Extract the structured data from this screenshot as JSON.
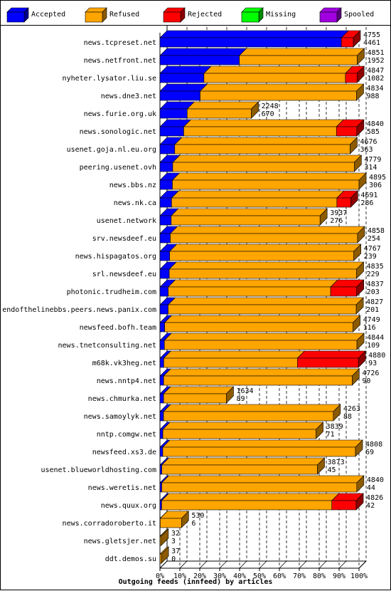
{
  "chart_data": {
    "type": "bar",
    "orientation": "horizontal",
    "stacked": true,
    "xlabel": "Outgoing feeds (innfeed) by articles",
    "xticks": [
      "0%",
      "10%",
      "20%",
      "30%",
      "40%",
      "50%",
      "60%",
      "70%",
      "80%",
      "90%",
      "100%"
    ],
    "xlim": [
      0,
      100
    ],
    "grid": true,
    "legend": {
      "position": "top",
      "items": [
        {
          "name": "Accepted",
          "color": "#0000ff"
        },
        {
          "name": "Refused",
          "color": "#ffa500"
        },
        {
          "name": "Rejected",
          "color": "#ff0000"
        },
        {
          "name": "Missing",
          "color": "#00ff00"
        },
        {
          "name": "Spooled",
          "color": "#a000e0"
        }
      ]
    },
    "rows": [
      {
        "name": "news.tcpreset.net",
        "total": 4755,
        "accepted": 4461,
        "refused": 0,
        "rejected": 294,
        "missing": 0,
        "spooled": 0
      },
      {
        "name": "news.netfront.net",
        "total": 4851,
        "accepted": 1952,
        "refused": 2899,
        "rejected": 0,
        "missing": 0,
        "spooled": 0
      },
      {
        "name": "nyheter.lysator.liu.se",
        "total": 4847,
        "accepted": 1082,
        "refused": 3480,
        "rejected": 285,
        "missing": 0,
        "spooled": 0
      },
      {
        "name": "news.dne3.net",
        "total": 4834,
        "accepted": 988,
        "refused": 3846,
        "rejected": 0,
        "missing": 0,
        "spooled": 0
      },
      {
        "name": "news.furie.org.uk",
        "total": 2248,
        "accepted": 670,
        "refused": 1578,
        "rejected": 0,
        "missing": 0,
        "spooled": 0
      },
      {
        "name": "news.sonologic.net",
        "total": 4840,
        "accepted": 585,
        "refused": 3755,
        "rejected": 500,
        "missing": 0,
        "spooled": 0
      },
      {
        "name": "usenet.goja.nl.eu.org",
        "total": 4676,
        "accepted": 363,
        "refused": 4313,
        "rejected": 0,
        "missing": 0,
        "spooled": 0
      },
      {
        "name": "peering.usenet.ovh",
        "total": 4779,
        "accepted": 314,
        "refused": 4465,
        "rejected": 0,
        "missing": 0,
        "spooled": 0
      },
      {
        "name": "news.bbs.nz",
        "total": 4895,
        "accepted": 306,
        "refused": 4589,
        "rejected": 0,
        "missing": 0,
        "spooled": 0
      },
      {
        "name": "news.nk.ca",
        "total": 4691,
        "accepted": 286,
        "refused": 4065,
        "rejected": 340,
        "missing": 0,
        "spooled": 0
      },
      {
        "name": "usenet.network",
        "total": 3937,
        "accepted": 276,
        "refused": 3661,
        "rejected": 0,
        "missing": 0,
        "spooled": 0
      },
      {
        "name": "srv.newsdeef.eu",
        "total": 4858,
        "accepted": 254,
        "refused": 4604,
        "rejected": 0,
        "missing": 0,
        "spooled": 0
      },
      {
        "name": "news.hispagatos.org",
        "total": 4767,
        "accepted": 239,
        "refused": 4528,
        "rejected": 0,
        "missing": 0,
        "spooled": 0
      },
      {
        "name": "srl.newsdeef.eu",
        "total": 4835,
        "accepted": 229,
        "refused": 4606,
        "rejected": 0,
        "missing": 0,
        "spooled": 0
      },
      {
        "name": "photonic.trudheim.com",
        "total": 4837,
        "accepted": 203,
        "refused": 3994,
        "rejected": 640,
        "missing": 0,
        "spooled": 0
      },
      {
        "name": "endofthelinebbs.peers.news.panix.com",
        "total": 4827,
        "accepted": 201,
        "refused": 4626,
        "rejected": 0,
        "missing": 0,
        "spooled": 0
      },
      {
        "name": "newsfeed.bofh.team",
        "total": 4749,
        "accepted": 116,
        "refused": 4633,
        "rejected": 0,
        "missing": 0,
        "spooled": 0
      },
      {
        "name": "news.tnetconsulting.net",
        "total": 4844,
        "accepted": 109,
        "refused": 4735,
        "rejected": 0,
        "missing": 0,
        "spooled": 0
      },
      {
        "name": "m68k.vk3heg.net",
        "total": 4880,
        "accepted": 93,
        "refused": 3287,
        "rejected": 1500,
        "missing": 0,
        "spooled": 0
      },
      {
        "name": "news.nntp4.net",
        "total": 4726,
        "accepted": 90,
        "refused": 4636,
        "rejected": 0,
        "missing": 0,
        "spooled": 0
      },
      {
        "name": "news.chmurka.net",
        "total": 1634,
        "accepted": 89,
        "refused": 1545,
        "rejected": 0,
        "missing": 0,
        "spooled": 0
      },
      {
        "name": "news.samoylyk.net",
        "total": 4263,
        "accepted": 88,
        "refused": 4175,
        "rejected": 0,
        "missing": 0,
        "spooled": 0
      },
      {
        "name": "nntp.comgw.net",
        "total": 3839,
        "accepted": 71,
        "refused": 3768,
        "rejected": 0,
        "missing": 0,
        "spooled": 0
      },
      {
        "name": "newsfeed.xs3.de",
        "total": 4808,
        "accepted": 69,
        "refused": 4739,
        "rejected": 0,
        "missing": 0,
        "spooled": 0
      },
      {
        "name": "usenet.blueworldhosting.com",
        "total": 3873,
        "accepted": 45,
        "refused": 3828,
        "rejected": 0,
        "missing": 0,
        "spooled": 0
      },
      {
        "name": "news.weretis.net",
        "total": 4840,
        "accepted": 44,
        "refused": 4796,
        "rejected": 0,
        "missing": 0,
        "spooled": 0
      },
      {
        "name": "news.quux.org",
        "total": 4826,
        "accepted": 42,
        "refused": 4184,
        "rejected": 600,
        "missing": 0,
        "spooled": 0
      },
      {
        "name": "news.corradoroberto.it",
        "total": 530,
        "accepted": 6,
        "refused": 524,
        "rejected": 0,
        "missing": 0,
        "spooled": 0
      },
      {
        "name": "news.gletsjer.net",
        "total": 32,
        "accepted": 3,
        "refused": 29,
        "rejected": 0,
        "missing": 0,
        "spooled": 0
      },
      {
        "name": "ddt.demos.su",
        "total": 37,
        "accepted": 0,
        "refused": 37,
        "rejected": 0,
        "missing": 0,
        "spooled": 0
      }
    ]
  }
}
